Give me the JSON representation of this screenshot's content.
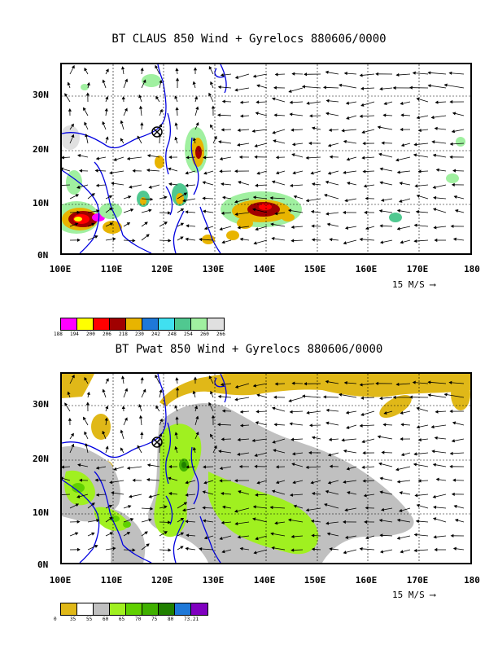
{
  "panel1": {
    "title": "BT CLAUS 850 Wind + Gyrelocs 880606/0000",
    "lat_labels": [
      "30N",
      "20N",
      "10N",
      "0N"
    ],
    "lon_labels": [
      "100E",
      "110E",
      "120E",
      "130E",
      "140E",
      "150E",
      "160E",
      "170E",
      "180"
    ],
    "scale_label": "15 M/S",
    "legend_values": [
      "188",
      "194",
      "200",
      "206",
      "218",
      "230",
      "242",
      "248",
      "254",
      "260",
      "266"
    ],
    "legend_colors": [
      "#ff00ff",
      "#ffff00",
      "#ff0000",
      "#a00000",
      "#e8b400",
      "#1e78d8",
      "#40e0f0",
      "#50c890",
      "#a0f0a0",
      "#e0e0e0"
    ]
  },
  "panel2": {
    "title": "BT Pwat 850 Wind + Gyrelocs 880606/0000",
    "lat_labels": [
      "30N",
      "20N",
      "10N",
      "0N"
    ],
    "lon_labels": [
      "100E",
      "110E",
      "120E",
      "130E",
      "140E",
      "150E",
      "160E",
      "170E",
      "180"
    ],
    "scale_label": "15 M/S",
    "legend_values": [
      "0",
      "35",
      "55",
      "60",
      "65",
      "70",
      "75",
      "80",
      "73.21"
    ],
    "legend_colors": [
      "#e0b818",
      "#ffffff",
      "#c0c0c0",
      "#a0f020",
      "#60d000",
      "#40b000",
      "#208000",
      "#1e78d8",
      "#8000c0"
    ]
  },
  "gyre_marker": {
    "lon": 118.5,
    "lat": 23.5
  },
  "icons": [
    "gyre-location-icon"
  ]
}
